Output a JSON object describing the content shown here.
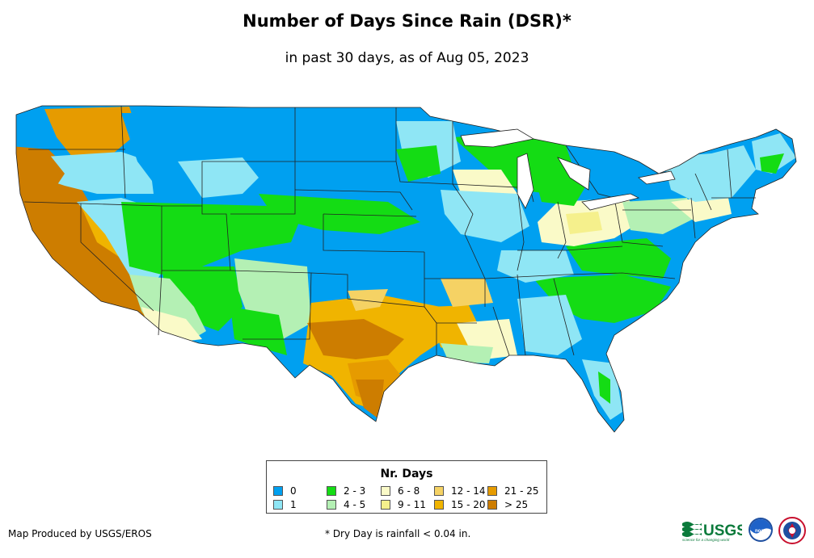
{
  "header": {
    "title": "Number of Days Since Rain (DSR)*",
    "subtitle": "in past 30 days, as of Aug 05, 2023"
  },
  "legend": {
    "title": "Nr. Days",
    "items": [
      {
        "label": "0",
        "color": "#00a0f0"
      },
      {
        "label": "1",
        "color": "#8fe6f5"
      },
      {
        "label": "2 - 3",
        "color": "#14dc14"
      },
      {
        "label": "4 - 5",
        "color": "#b4f0b4"
      },
      {
        "label": "6 - 8",
        "color": "#fafac8"
      },
      {
        "label": "9 - 11",
        "color": "#f5f08c"
      },
      {
        "label": "12 - 14",
        "color": "#f5d264"
      },
      {
        "label": "15 - 20",
        "color": "#f0b400"
      },
      {
        "label": "21 - 25",
        "color": "#e69b00"
      },
      {
        "label": "> 25",
        "color": "#cd7d00"
      }
    ]
  },
  "footer": {
    "credit": "Map Produced by USGS/EROS",
    "footnote": "* Dry Day is rainfall < 0.04 in."
  },
  "logos": {
    "usgs_text": "USGS",
    "usgs_tagline": "science for a changing world",
    "noaa_text": "noaa"
  }
}
